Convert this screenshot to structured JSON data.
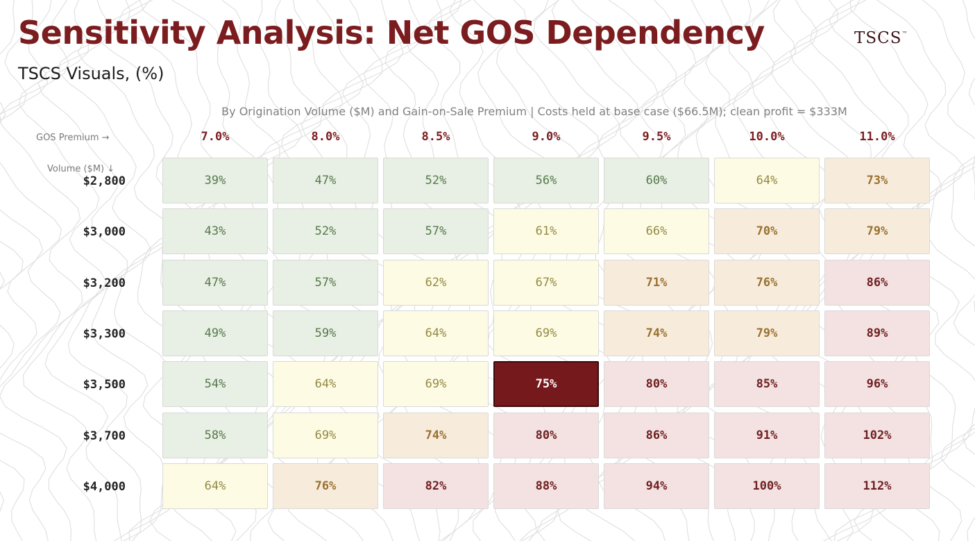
{
  "header": {
    "title": "Sensitivity Analysis: Net GOS Dependency",
    "subtitle": "TSCS Visuals, (%)",
    "logo": "TSCS",
    "logo_mark": "™"
  },
  "chart_data": {
    "type": "heatmap",
    "title": "Sensitivity Analysis: Net GOS Dependency",
    "subtitle": "By Origination Volume ($M) and Gain-on-Sale Premium  |  Costs held at base case ($66.5M); clean profit = $333M",
    "xlabel": "GOS Premium →",
    "ylabel": "Volume ($M) ↓",
    "x_categories": [
      "7.0%",
      "8.0%",
      "8.5%",
      "9.0%",
      "9.5%",
      "10.0%",
      "11.0%"
    ],
    "y_categories": [
      "$2,800",
      "$3,000",
      "$3,200",
      "$3,300",
      "$3,500",
      "$3,700",
      "$4,000"
    ],
    "values": [
      [
        39,
        47,
        52,
        56,
        60,
        64,
        73
      ],
      [
        43,
        52,
        57,
        61,
        66,
        70,
        79
      ],
      [
        47,
        57,
        62,
        67,
        71,
        76,
        86
      ],
      [
        49,
        59,
        64,
        69,
        74,
        79,
        89
      ],
      [
        54,
        64,
        69,
        75,
        80,
        85,
        96
      ],
      [
        58,
        69,
        74,
        80,
        86,
        91,
        102
      ],
      [
        64,
        76,
        82,
        88,
        94,
        100,
        112
      ]
    ],
    "value_suffix": "%",
    "highlight": {
      "row": 4,
      "col": 3
    },
    "color_bands": [
      {
        "max": 60,
        "fill": "#e8efe4",
        "text": "#557a4c",
        "bold": false
      },
      {
        "max": 69,
        "fill": "#fdfbe3",
        "text": "#938a45",
        "bold": false
      },
      {
        "max": 79,
        "fill": "#f7ecdc",
        "text": "#9a7130",
        "bold": true
      },
      {
        "max": 999,
        "fill": "#f4e2e2",
        "text": "#6e2022",
        "bold": true
      }
    ],
    "highlight_colors": {
      "fill": "#76191c",
      "text": "#ffffff",
      "border": "#3a0a0c"
    }
  }
}
